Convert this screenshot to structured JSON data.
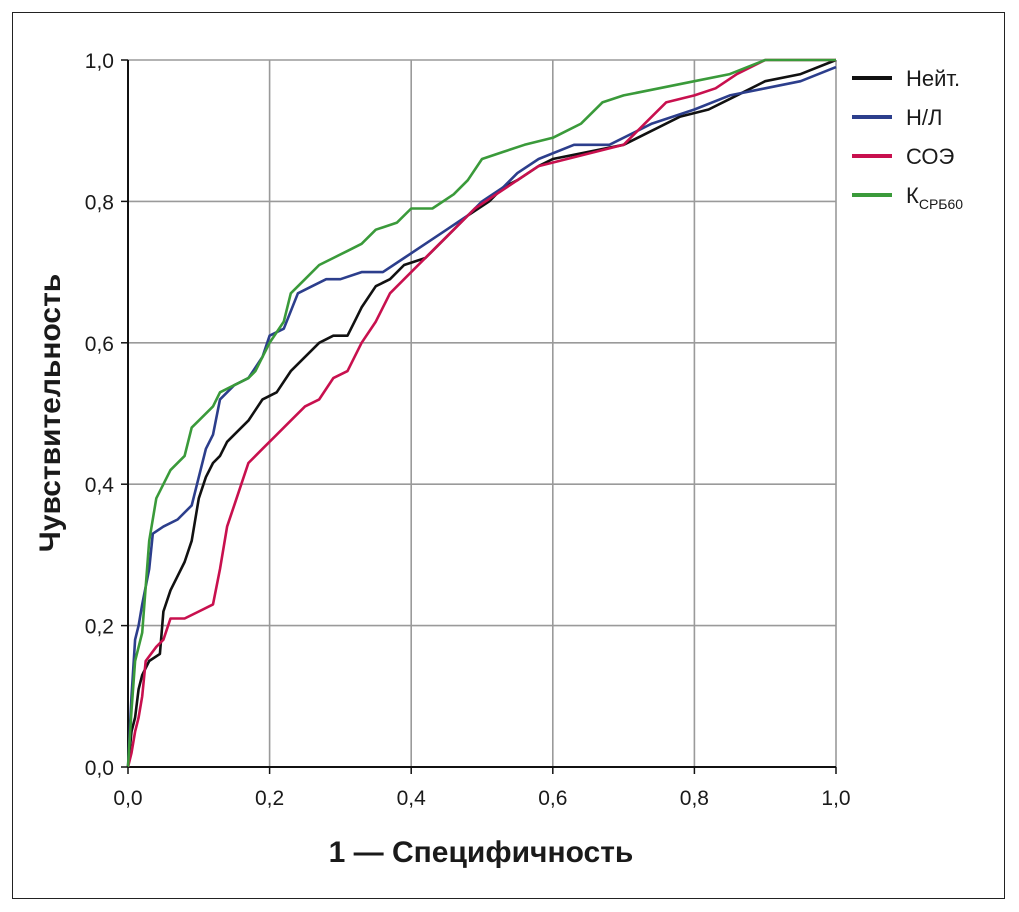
{
  "chart_data": {
    "type": "line",
    "xlabel": "1 — Специфичность",
    "ylabel": "Чувствительность",
    "xlim": [
      0,
      1
    ],
    "ylim": [
      0,
      1
    ],
    "xticks": [
      "0,0",
      "0,2",
      "0,4",
      "0,6",
      "0,8",
      "1,0"
    ],
    "yticks": [
      "0,0",
      "0,2",
      "0,4",
      "0,6",
      "0,8",
      "1,0"
    ],
    "grid": true,
    "legend_position": "right",
    "series": [
      {
        "name": "Нейт.",
        "legend_main": "Нейт.",
        "legend_sub": "",
        "color": "#111111",
        "points": [
          [
            0,
            0
          ],
          [
            0.005,
            0.05
          ],
          [
            0.01,
            0.07
          ],
          [
            0.015,
            0.11
          ],
          [
            0.02,
            0.13
          ],
          [
            0.03,
            0.15
          ],
          [
            0.045,
            0.16
          ],
          [
            0.05,
            0.22
          ],
          [
            0.06,
            0.25
          ],
          [
            0.07,
            0.27
          ],
          [
            0.08,
            0.29
          ],
          [
            0.09,
            0.32
          ],
          [
            0.1,
            0.38
          ],
          [
            0.11,
            0.41
          ],
          [
            0.12,
            0.43
          ],
          [
            0.13,
            0.44
          ],
          [
            0.14,
            0.46
          ],
          [
            0.15,
            0.47
          ],
          [
            0.17,
            0.49
          ],
          [
            0.19,
            0.52
          ],
          [
            0.21,
            0.53
          ],
          [
            0.23,
            0.56
          ],
          [
            0.25,
            0.58
          ],
          [
            0.27,
            0.6
          ],
          [
            0.29,
            0.61
          ],
          [
            0.31,
            0.61
          ],
          [
            0.32,
            0.63
          ],
          [
            0.33,
            0.65
          ],
          [
            0.35,
            0.68
          ],
          [
            0.37,
            0.69
          ],
          [
            0.39,
            0.71
          ],
          [
            0.42,
            0.72
          ],
          [
            0.45,
            0.75
          ],
          [
            0.48,
            0.78
          ],
          [
            0.51,
            0.8
          ],
          [
            0.53,
            0.82
          ],
          [
            0.55,
            0.83
          ],
          [
            0.58,
            0.85
          ],
          [
            0.6,
            0.86
          ],
          [
            0.65,
            0.87
          ],
          [
            0.7,
            0.88
          ],
          [
            0.74,
            0.9
          ],
          [
            0.78,
            0.92
          ],
          [
            0.82,
            0.93
          ],
          [
            0.86,
            0.95
          ],
          [
            0.9,
            0.97
          ],
          [
            0.95,
            0.98
          ],
          [
            1,
            1
          ]
        ]
      },
      {
        "name": "Н/Л",
        "legend_main": "Н/Л",
        "legend_sub": "",
        "color": "#2c3e8c",
        "points": [
          [
            0,
            0
          ],
          [
            0.005,
            0.1
          ],
          [
            0.01,
            0.18
          ],
          [
            0.015,
            0.2
          ],
          [
            0.02,
            0.23
          ],
          [
            0.03,
            0.28
          ],
          [
            0.035,
            0.33
          ],
          [
            0.05,
            0.34
          ],
          [
            0.07,
            0.35
          ],
          [
            0.09,
            0.37
          ],
          [
            0.1,
            0.41
          ],
          [
            0.11,
            0.45
          ],
          [
            0.12,
            0.47
          ],
          [
            0.13,
            0.52
          ],
          [
            0.15,
            0.54
          ],
          [
            0.17,
            0.55
          ],
          [
            0.19,
            0.58
          ],
          [
            0.2,
            0.61
          ],
          [
            0.22,
            0.62
          ],
          [
            0.24,
            0.67
          ],
          [
            0.26,
            0.68
          ],
          [
            0.28,
            0.69
          ],
          [
            0.3,
            0.69
          ],
          [
            0.33,
            0.7
          ],
          [
            0.36,
            0.7
          ],
          [
            0.39,
            0.72
          ],
          [
            0.42,
            0.74
          ],
          [
            0.45,
            0.76
          ],
          [
            0.48,
            0.78
          ],
          [
            0.5,
            0.8
          ],
          [
            0.53,
            0.82
          ],
          [
            0.55,
            0.84
          ],
          [
            0.58,
            0.86
          ],
          [
            0.63,
            0.88
          ],
          [
            0.68,
            0.88
          ],
          [
            0.74,
            0.91
          ],
          [
            0.8,
            0.93
          ],
          [
            0.85,
            0.95
          ],
          [
            0.9,
            0.96
          ],
          [
            0.95,
            0.97
          ],
          [
            1,
            0.99
          ]
        ]
      },
      {
        "name": "СОЭ",
        "legend_main": "СОЭ",
        "legend_sub": "",
        "color": "#c8104e",
        "points": [
          [
            0,
            0
          ],
          [
            0.005,
            0.02
          ],
          [
            0.01,
            0.05
          ],
          [
            0.015,
            0.07
          ],
          [
            0.02,
            0.1
          ],
          [
            0.025,
            0.15
          ],
          [
            0.04,
            0.17
          ],
          [
            0.05,
            0.18
          ],
          [
            0.06,
            0.21
          ],
          [
            0.08,
            0.21
          ],
          [
            0.1,
            0.22
          ],
          [
            0.12,
            0.23
          ],
          [
            0.13,
            0.28
          ],
          [
            0.14,
            0.34
          ],
          [
            0.15,
            0.37
          ],
          [
            0.16,
            0.4
          ],
          [
            0.17,
            0.43
          ],
          [
            0.19,
            0.45
          ],
          [
            0.21,
            0.47
          ],
          [
            0.23,
            0.49
          ],
          [
            0.25,
            0.51
          ],
          [
            0.27,
            0.52
          ],
          [
            0.29,
            0.55
          ],
          [
            0.31,
            0.56
          ],
          [
            0.33,
            0.6
          ],
          [
            0.35,
            0.63
          ],
          [
            0.37,
            0.67
          ],
          [
            0.4,
            0.7
          ],
          [
            0.43,
            0.73
          ],
          [
            0.46,
            0.76
          ],
          [
            0.49,
            0.79
          ],
          [
            0.52,
            0.81
          ],
          [
            0.55,
            0.83
          ],
          [
            0.58,
            0.85
          ],
          [
            0.62,
            0.86
          ],
          [
            0.66,
            0.87
          ],
          [
            0.7,
            0.88
          ],
          [
            0.73,
            0.91
          ],
          [
            0.76,
            0.94
          ],
          [
            0.8,
            0.95
          ],
          [
            0.83,
            0.96
          ],
          [
            0.86,
            0.98
          ],
          [
            0.9,
            1
          ],
          [
            1,
            1
          ]
        ]
      },
      {
        "name": "КСРБ60",
        "legend_main": "К",
        "legend_sub": "СРБ60",
        "color": "#3a9a3a",
        "points": [
          [
            0,
            0
          ],
          [
            0.005,
            0.08
          ],
          [
            0.01,
            0.15
          ],
          [
            0.02,
            0.19
          ],
          [
            0.03,
            0.32
          ],
          [
            0.04,
            0.38
          ],
          [
            0.05,
            0.4
          ],
          [
            0.06,
            0.42
          ],
          [
            0.08,
            0.44
          ],
          [
            0.09,
            0.48
          ],
          [
            0.1,
            0.49
          ],
          [
            0.12,
            0.51
          ],
          [
            0.13,
            0.53
          ],
          [
            0.15,
            0.54
          ],
          [
            0.17,
            0.55
          ],
          [
            0.18,
            0.56
          ],
          [
            0.2,
            0.6
          ],
          [
            0.22,
            0.63
          ],
          [
            0.23,
            0.67
          ],
          [
            0.25,
            0.69
          ],
          [
            0.27,
            0.71
          ],
          [
            0.29,
            0.72
          ],
          [
            0.31,
            0.73
          ],
          [
            0.33,
            0.74
          ],
          [
            0.35,
            0.76
          ],
          [
            0.38,
            0.77
          ],
          [
            0.4,
            0.79
          ],
          [
            0.43,
            0.79
          ],
          [
            0.46,
            0.81
          ],
          [
            0.48,
            0.83
          ],
          [
            0.5,
            0.86
          ],
          [
            0.53,
            0.87
          ],
          [
            0.56,
            0.88
          ],
          [
            0.6,
            0.89
          ],
          [
            0.64,
            0.91
          ],
          [
            0.67,
            0.94
          ],
          [
            0.7,
            0.95
          ],
          [
            0.75,
            0.96
          ],
          [
            0.8,
            0.97
          ],
          [
            0.85,
            0.98
          ],
          [
            0.9,
            1
          ],
          [
            1,
            1
          ]
        ]
      }
    ]
  }
}
